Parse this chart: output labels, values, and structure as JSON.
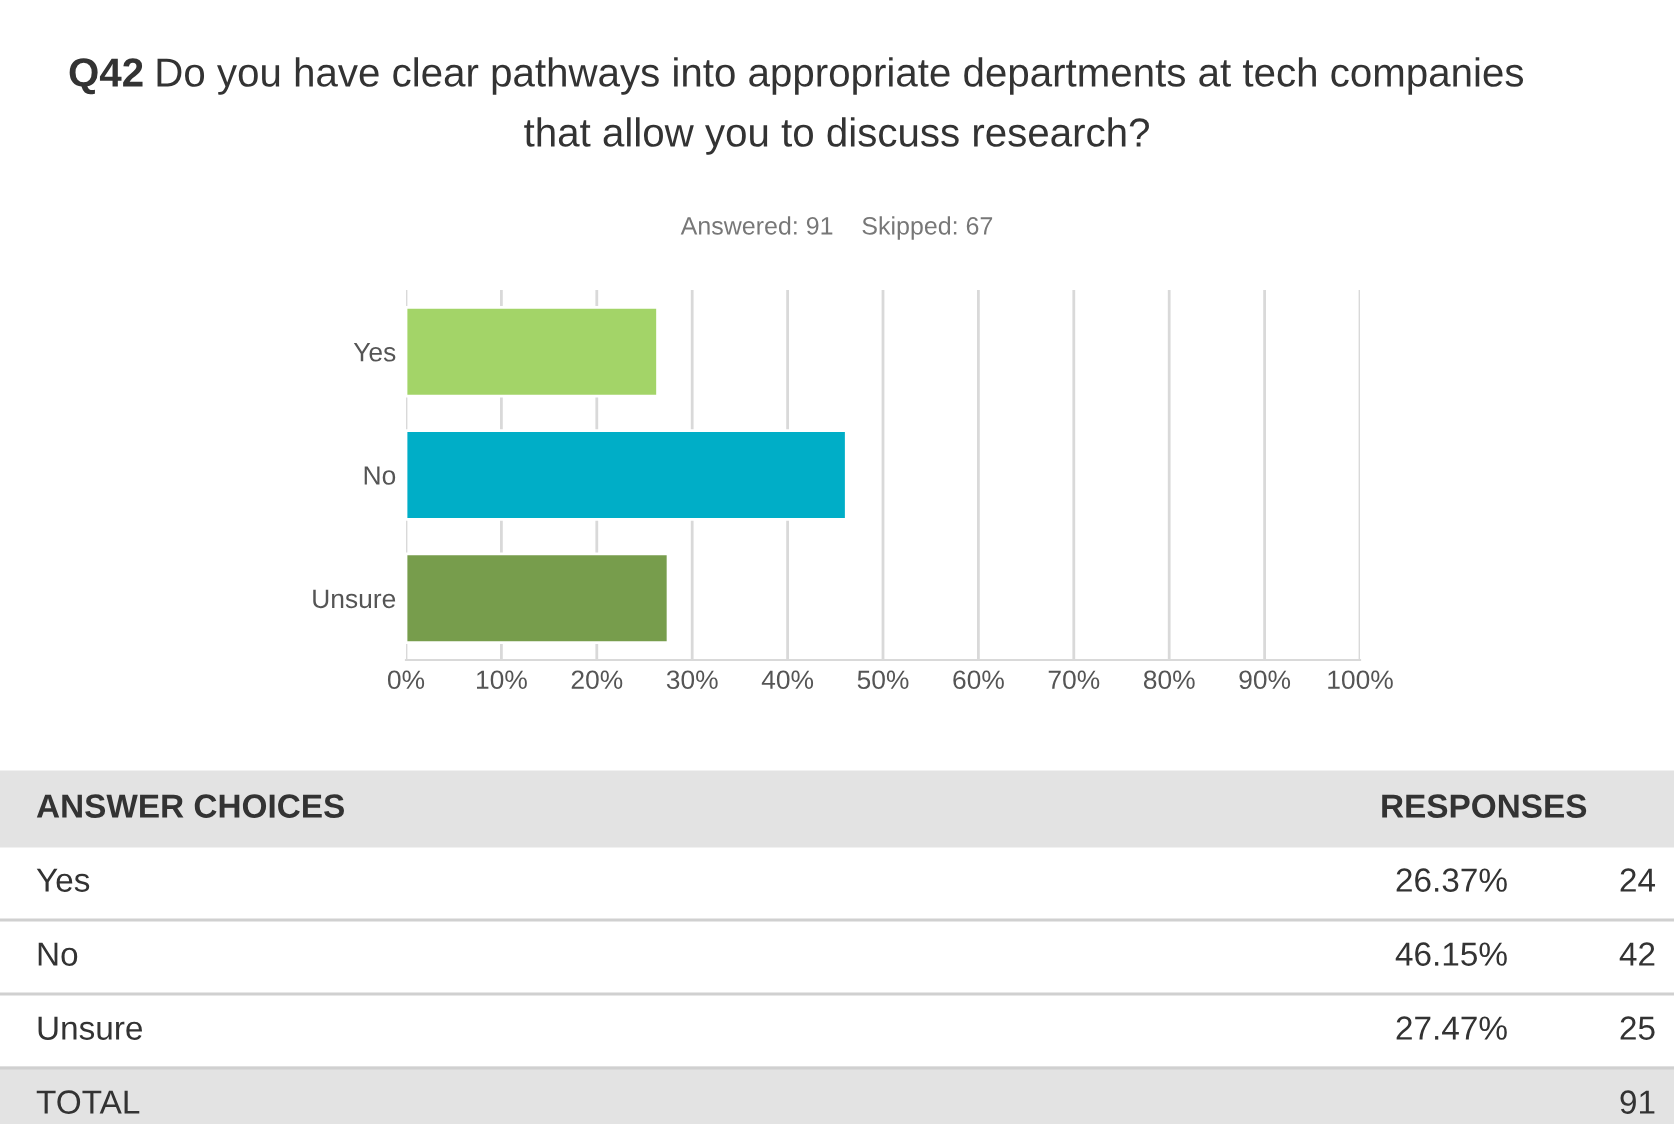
{
  "chart_data": {
    "type": "bar",
    "orientation": "horizontal",
    "title": "Q42 Do you have clear pathways into appropriate departments at tech companies that allow you to discuss research?",
    "subtitle": "Answered: 91    Skipped: 67",
    "categories": [
      "Yes",
      "No",
      "Unsure"
    ],
    "values": [
      26.37,
      46.15,
      27.47
    ],
    "colors": [
      "#a3d468",
      "#00aec7",
      "#779d4c"
    ],
    "xlim": [
      0,
      100
    ],
    "xticks": [
      {
        "value": 0,
        "label": "0%"
      },
      {
        "value": 10,
        "label": "10%"
      },
      {
        "value": 20,
        "label": "20%"
      },
      {
        "value": 30,
        "label": "30%"
      },
      {
        "value": 40,
        "label": "40%"
      },
      {
        "value": 50,
        "label": "50%"
      },
      {
        "value": 60,
        "label": "60%"
      },
      {
        "value": 70,
        "label": "70%"
      },
      {
        "value": 80,
        "label": "80%"
      },
      {
        "value": 90,
        "label": "90%"
      },
      {
        "value": 100,
        "label": "100%"
      }
    ],
    "grid": "x",
    "legend": false,
    "annotations": [
      "ANSWER CHOICES",
      "RESPONSES",
      "26.37%",
      "46.15%",
      "27.47%",
      "24",
      "42",
      "25",
      "TOTAL",
      "91"
    ]
  }
}
